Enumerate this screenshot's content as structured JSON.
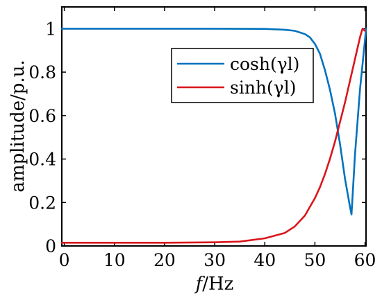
{
  "chart_data": {
    "type": "line",
    "title": "",
    "xlabel_italic": "f",
    "xlabel_rest": "/Hz",
    "ylabel": "amplitude/p.u.",
    "xlim": [
      -0.5,
      60.2
    ],
    "ylim": [
      0,
      1.1
    ],
    "xticks": [
      0,
      10,
      20,
      30,
      40,
      50,
      60
    ],
    "yticks": [
      0,
      0.2,
      0.4,
      0.6,
      0.8,
      1
    ],
    "xtick_labels": [
      "0",
      "10",
      "20",
      "30",
      "40",
      "50",
      "60"
    ],
    "ytick_labels": [
      "0",
      "0.2",
      "0.4",
      "0.6",
      "0.8",
      "1"
    ],
    "grid": false,
    "legend_position": "top-right",
    "series": [
      {
        "name": "cosh(γl)",
        "color": "#0072BD",
        "x": [
          -0.5,
          0,
          10,
          20,
          30,
          40,
          44,
          46,
          48,
          49,
          50,
          51,
          52,
          53,
          54,
          55,
          56,
          57,
          57.3,
          58,
          59,
          60,
          60.2
        ],
        "y": [
          1.0,
          1.0,
          1.0,
          1.0,
          1.0,
          0.999,
          0.995,
          0.99,
          0.975,
          0.96,
          0.93,
          0.885,
          0.81,
          0.72,
          0.61,
          0.47,
          0.31,
          0.18,
          0.145,
          0.42,
          0.72,
          0.95,
          1.0
        ]
      },
      {
        "name": "sinh(γl)",
        "color": "#D9161B",
        "x": [
          -0.5,
          0,
          10,
          20,
          30,
          35,
          40,
          44,
          46,
          48,
          50,
          51,
          52,
          53,
          54,
          55,
          56,
          57,
          58,
          59,
          59.5,
          60
        ],
        "y": [
          0.015,
          0.015,
          0.015,
          0.015,
          0.017,
          0.02,
          0.035,
          0.06,
          0.09,
          0.14,
          0.22,
          0.27,
          0.33,
          0.4,
          0.48,
          0.57,
          0.66,
          0.76,
          0.86,
          0.96,
          1.0,
          0.99
        ]
      }
    ]
  }
}
